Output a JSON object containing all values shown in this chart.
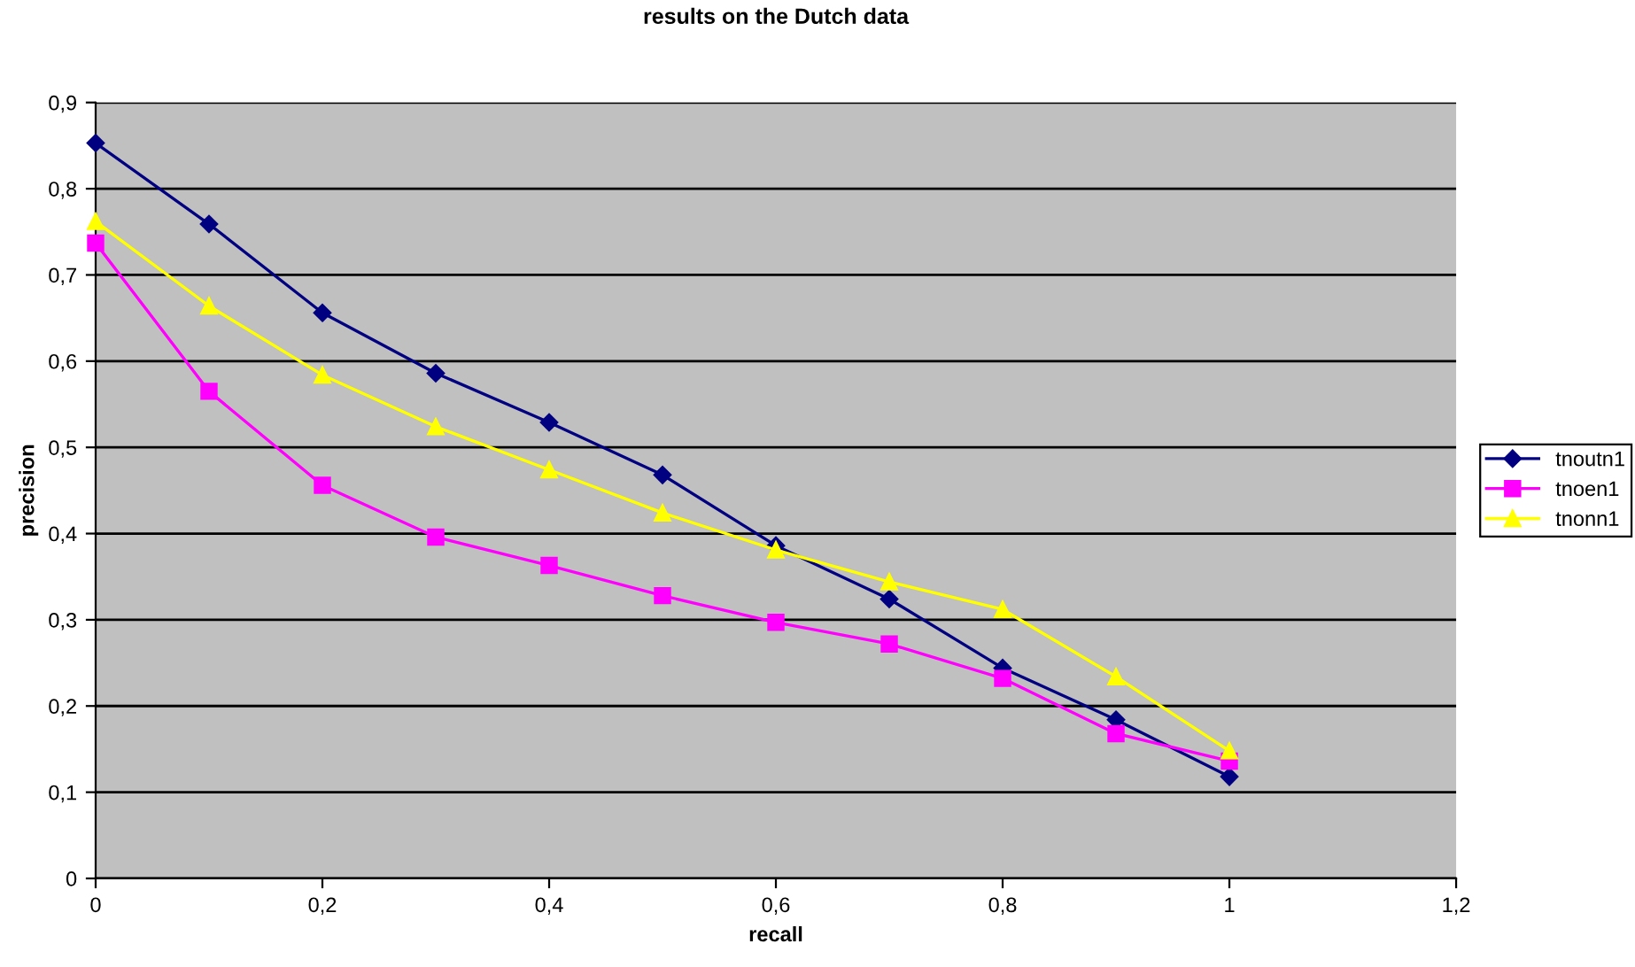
{
  "chart_data": {
    "type": "line",
    "title": "results on the Dutch data",
    "xlabel": "recall",
    "ylabel": "precision",
    "x": [
      0,
      0.1,
      0.2,
      0.3,
      0.4,
      0.5,
      0.6,
      0.7,
      0.8,
      0.9,
      1
    ],
    "series": [
      {
        "name": "tnoutn1",
        "color": "#000080",
        "marker": "diamond",
        "values": [
          0.853,
          0.759,
          0.656,
          0.586,
          0.529,
          0.468,
          0.386,
          0.324,
          0.244,
          0.184,
          0.118
        ]
      },
      {
        "name": "tnoen1",
        "color": "#ff00ff",
        "marker": "square",
        "values": [
          0.737,
          0.565,
          0.456,
          0.396,
          0.363,
          0.328,
          0.297,
          0.272,
          0.232,
          0.168,
          0.136
        ]
      },
      {
        "name": "tnonn1",
        "color": "#ffff00",
        "marker": "triangle",
        "values": [
          0.762,
          0.664,
          0.584,
          0.524,
          0.474,
          0.424,
          0.381,
          0.344,
          0.312,
          0.234,
          0.148
        ]
      }
    ],
    "xlim": [
      0,
      1.2
    ],
    "xticks": [
      {
        "value": 0,
        "label": "0"
      },
      {
        "value": 0.2,
        "label": "0,2"
      },
      {
        "value": 0.4,
        "label": "0,4"
      },
      {
        "value": 0.6,
        "label": "0,6"
      },
      {
        "value": 0.8,
        "label": "0,8"
      },
      {
        "value": 1,
        "label": "1"
      },
      {
        "value": 1.2,
        "label": "1,2"
      }
    ],
    "ylim": [
      0,
      0.9
    ],
    "yticks": [
      {
        "value": 0,
        "label": "0"
      },
      {
        "value": 0.1,
        "label": "0,1"
      },
      {
        "value": 0.2,
        "label": "0,2"
      },
      {
        "value": 0.3,
        "label": "0,3"
      },
      {
        "value": 0.4,
        "label": "0,4"
      },
      {
        "value": 0.5,
        "label": "0,5"
      },
      {
        "value": 0.6,
        "label": "0,6"
      },
      {
        "value": 0.7,
        "label": "0,7"
      },
      {
        "value": 0.8,
        "label": "0,8"
      },
      {
        "value": 0.9,
        "label": "0,9"
      }
    ],
    "grid": "y",
    "legend": "right",
    "line_style": "solid"
  }
}
